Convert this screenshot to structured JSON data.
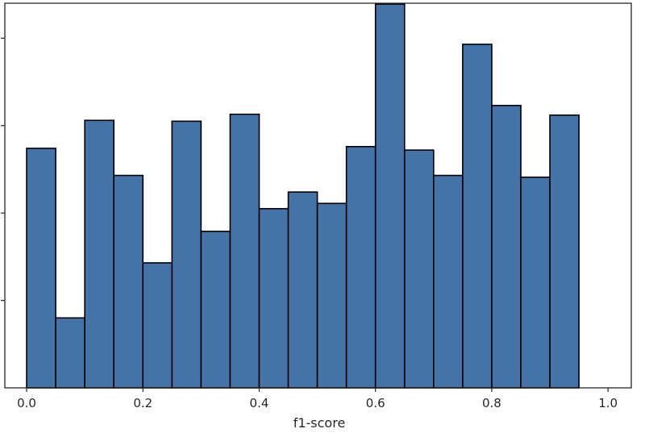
{
  "chart_data": {
    "type": "bar",
    "subtype": "histogram",
    "title": "",
    "xlabel": "f1-score",
    "ylabel": "",
    "x_ticks": [
      "0.0",
      "0.2",
      "0.4",
      "0.6",
      "0.8",
      "1.0"
    ],
    "y_tick_labels_visible": false,
    "xlim": [
      -0.0375,
      1.04
    ],
    "ylim": [
      0,
      44
    ],
    "bin_width": 0.05,
    "bins": [
      {
        "x0": 0.0,
        "x1": 0.05,
        "value": 27.4
      },
      {
        "x0": 0.05,
        "x1": 0.1,
        "value": 8.0
      },
      {
        "x0": 0.1,
        "x1": 0.15,
        "value": 30.6
      },
      {
        "x0": 0.15,
        "x1": 0.2,
        "value": 24.3
      },
      {
        "x0": 0.2,
        "x1": 0.25,
        "value": 14.3
      },
      {
        "x0": 0.25,
        "x1": 0.3,
        "value": 30.5
      },
      {
        "x0": 0.3,
        "x1": 0.35,
        "value": 17.9
      },
      {
        "x0": 0.35,
        "x1": 0.4,
        "value": 31.3
      },
      {
        "x0": 0.4,
        "x1": 0.45,
        "value": 20.5
      },
      {
        "x0": 0.45,
        "x1": 0.5,
        "value": 22.4
      },
      {
        "x0": 0.5,
        "x1": 0.55,
        "value": 21.1
      },
      {
        "x0": 0.55,
        "x1": 0.6,
        "value": 27.6
      },
      {
        "x0": 0.6,
        "x1": 0.65,
        "value": 43.9
      },
      {
        "x0": 0.65,
        "x1": 0.7,
        "value": 27.2
      },
      {
        "x0": 0.7,
        "x1": 0.75,
        "value": 24.3
      },
      {
        "x0": 0.75,
        "x1": 0.8,
        "value": 39.3
      },
      {
        "x0": 0.8,
        "x1": 0.85,
        "value": 32.3
      },
      {
        "x0": 0.85,
        "x1": 0.9,
        "value": 24.1
      },
      {
        "x0": 0.9,
        "x1": 0.95,
        "value": 31.2
      }
    ],
    "grid": false,
    "legend": "none",
    "colors": {
      "bar_fill": "#4572a7",
      "bar_edge": "#000000",
      "axes": "#262626",
      "background": "#ffffff"
    }
  }
}
